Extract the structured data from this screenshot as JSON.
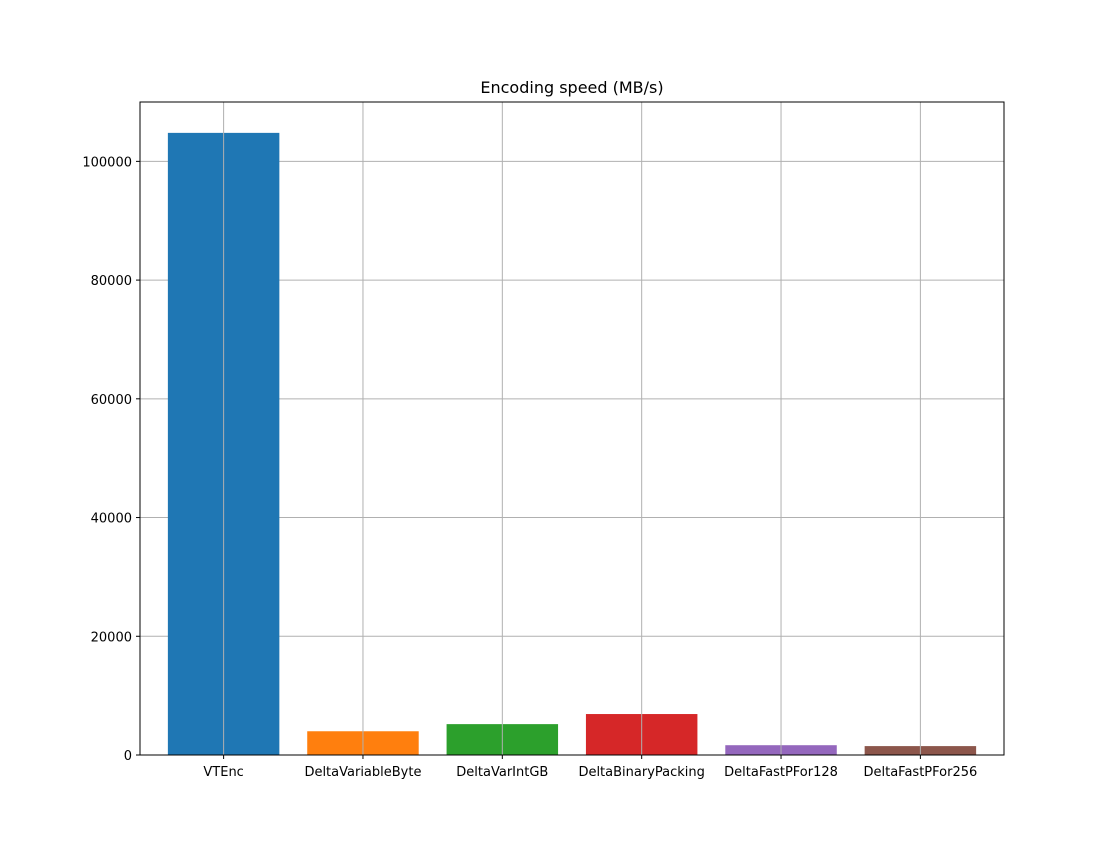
{
  "chart_data": {
    "type": "bar",
    "title": "Encoding speed (MB/s)",
    "xlabel": "",
    "ylabel": "",
    "categories": [
      "VTEnc",
      "DeltaVariableByte",
      "DeltaVarIntGB",
      "DeltaBinaryPacking",
      "DeltaFastPFor128",
      "DeltaFastPFor256"
    ],
    "values": [
      104800,
      4000,
      5200,
      6900,
      1650,
      1500
    ],
    "colors": [
      "#1f77b4",
      "#ff7f0e",
      "#2ca02c",
      "#d62728",
      "#9467bd",
      "#8c564b"
    ],
    "ylim": [
      0,
      110000
    ],
    "yticks": [
      0,
      20000,
      40000,
      60000,
      80000,
      100000
    ],
    "ytick_labels": [
      "0",
      "20000",
      "40000",
      "60000",
      "80000",
      "100000"
    ],
    "grid": true,
    "legend": "none"
  }
}
